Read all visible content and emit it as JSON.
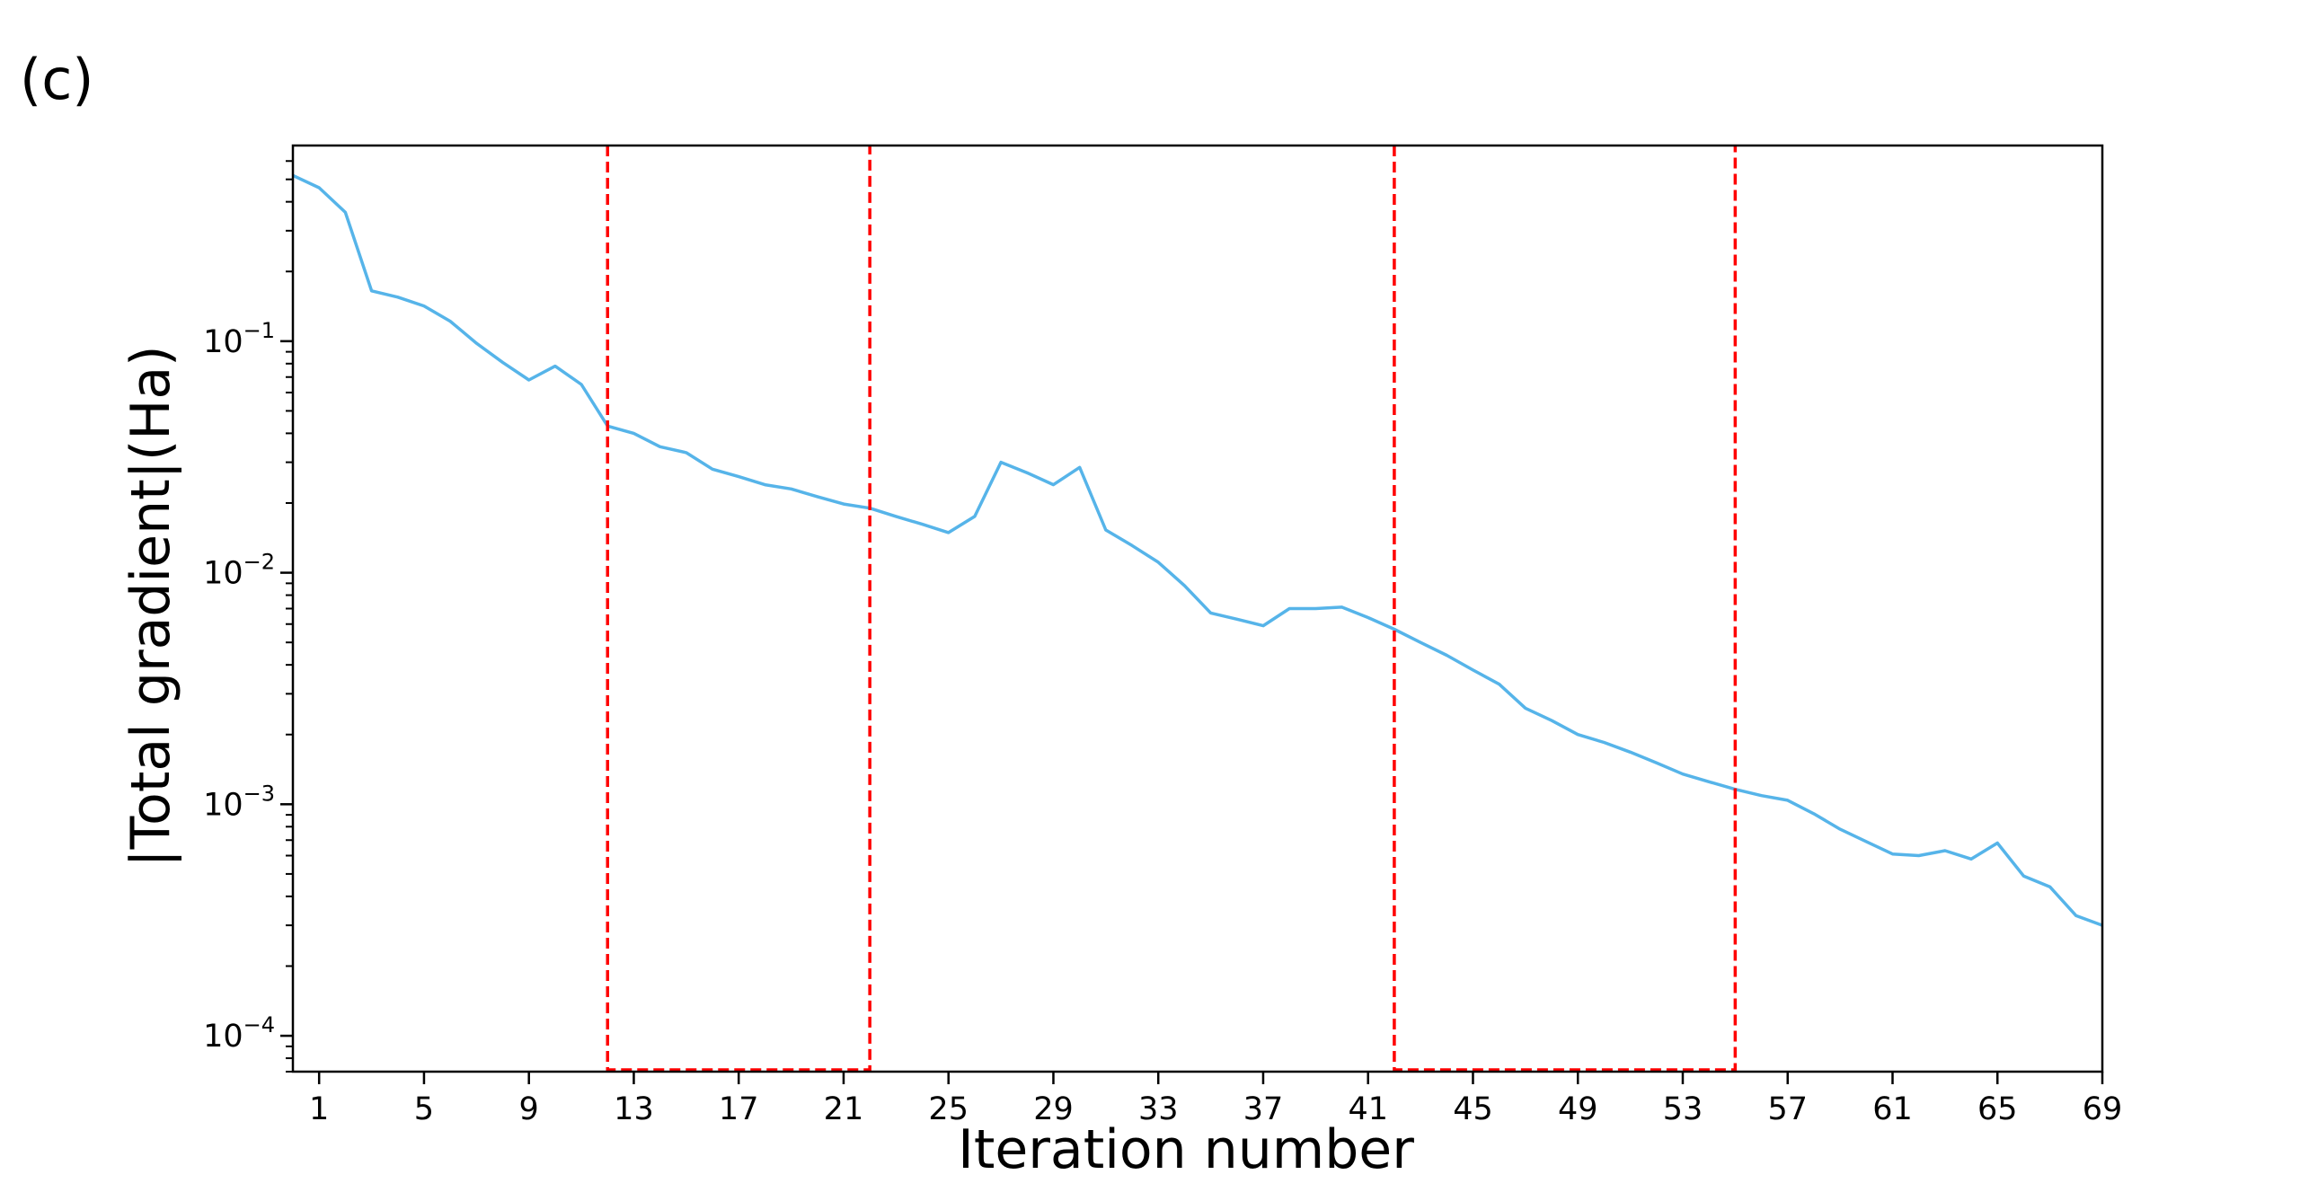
{
  "panel_label": "(c)",
  "chart_data": {
    "type": "line",
    "title": "",
    "xlabel": "Iteration number",
    "ylabel": "|Total gradient|(Ha)",
    "yscale": "log",
    "xlim": [
      0,
      69
    ],
    "ylim": [
      7e-05,
      0.7
    ],
    "xticks": [
      1,
      5,
      9,
      13,
      17,
      21,
      25,
      29,
      33,
      37,
      41,
      45,
      49,
      53,
      57,
      61,
      65,
      69
    ],
    "yticks": [
      {
        "value": 0.1,
        "base": "10",
        "exp": "−1"
      },
      {
        "value": 0.01,
        "base": "10",
        "exp": "−2"
      },
      {
        "value": 0.001,
        "base": "10",
        "exp": "−3"
      },
      {
        "value": 0.0001,
        "base": "10",
        "exp": "−4"
      }
    ],
    "grid": false,
    "line_color": "#56b4e9",
    "marker_color": "#ff0000",
    "series": [
      {
        "x": [
          0,
          1,
          2,
          3,
          4,
          5,
          6,
          7,
          8,
          9,
          10,
          11,
          12,
          13,
          14,
          15,
          16,
          17,
          18,
          19,
          20,
          21,
          22,
          23,
          24,
          25,
          26,
          27,
          28,
          29,
          30,
          31,
          32,
          33,
          34,
          35,
          36,
          37,
          38,
          39,
          40,
          41,
          42,
          43,
          44,
          45,
          46,
          47,
          48,
          49,
          50,
          51,
          52,
          53,
          54,
          55,
          56,
          57,
          58,
          59,
          60,
          61,
          62,
          63,
          64,
          65,
          66,
          67,
          68,
          69
        ],
        "values": [
          0.52,
          0.46,
          0.36,
          0.165,
          0.155,
          0.142,
          0.122,
          0.098,
          0.081,
          0.068,
          0.078,
          0.065,
          0.043,
          0.04,
          0.035,
          0.033,
          0.028,
          0.026,
          0.024,
          0.023,
          0.0213,
          0.0198,
          0.019,
          0.0175,
          0.0162,
          0.0149,
          0.0175,
          0.03,
          0.027,
          0.024,
          0.0285,
          0.0153,
          0.0131,
          0.0111,
          0.0088,
          0.0067,
          0.0063,
          0.0059,
          0.007,
          0.007,
          0.0071,
          0.0064,
          0.0057,
          0.005,
          0.0044,
          0.0038,
          0.0033,
          0.0026,
          0.0023,
          0.002,
          0.00185,
          0.00168,
          0.00151,
          0.00135,
          0.00125,
          0.00116,
          0.00109,
          0.00104,
          0.00091,
          0.00078,
          0.00069,
          0.00061,
          0.0006,
          0.00063,
          0.00058,
          0.00068,
          0.00049,
          0.00044,
          0.00033,
          0.0003
        ]
      }
    ],
    "markers": [
      {
        "x_start": 12,
        "x_end": 22
      },
      {
        "x_start": 42,
        "x_end": 55
      }
    ]
  }
}
